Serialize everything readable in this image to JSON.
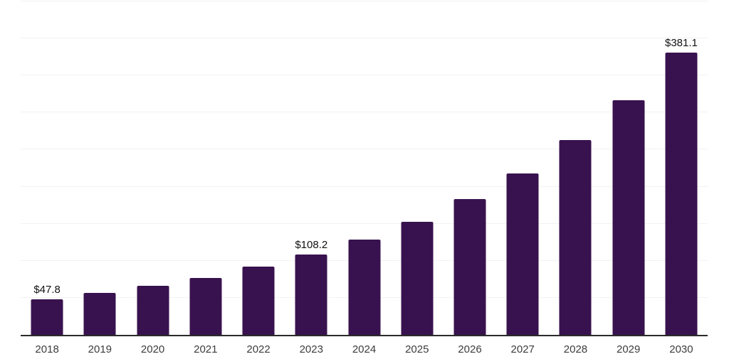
{
  "chart_data": {
    "type": "bar",
    "title": "",
    "xlabel": "",
    "ylabel": "",
    "categories": [
      "2018",
      "2019",
      "2020",
      "2021",
      "2022",
      "2023",
      "2024",
      "2025",
      "2026",
      "2027",
      "2028",
      "2029",
      "2030"
    ],
    "values": [
      47.8,
      56.4,
      65.9,
      76.4,
      91.7,
      108.2,
      129.0,
      152.8,
      183.4,
      217.8,
      262.7,
      316.2,
      381.1
    ],
    "data_labels": [
      "$47.8",
      null,
      null,
      null,
      null,
      "$108.2",
      null,
      null,
      null,
      null,
      null,
      null,
      "$381.1"
    ],
    "ylim": [
      0,
      450
    ],
    "gridline_step": 50,
    "grid": "horizontal-only",
    "legend": "none",
    "y_axis_tick_labels_visible": false,
    "colors": {
      "bar_fill": "#38124e",
      "axis_line": "#2b2b2b",
      "gridline": "#f2f2f2",
      "x_tick_label": "#3c3c3c",
      "data_label": "#111111",
      "background": "#ffffff"
    }
  }
}
